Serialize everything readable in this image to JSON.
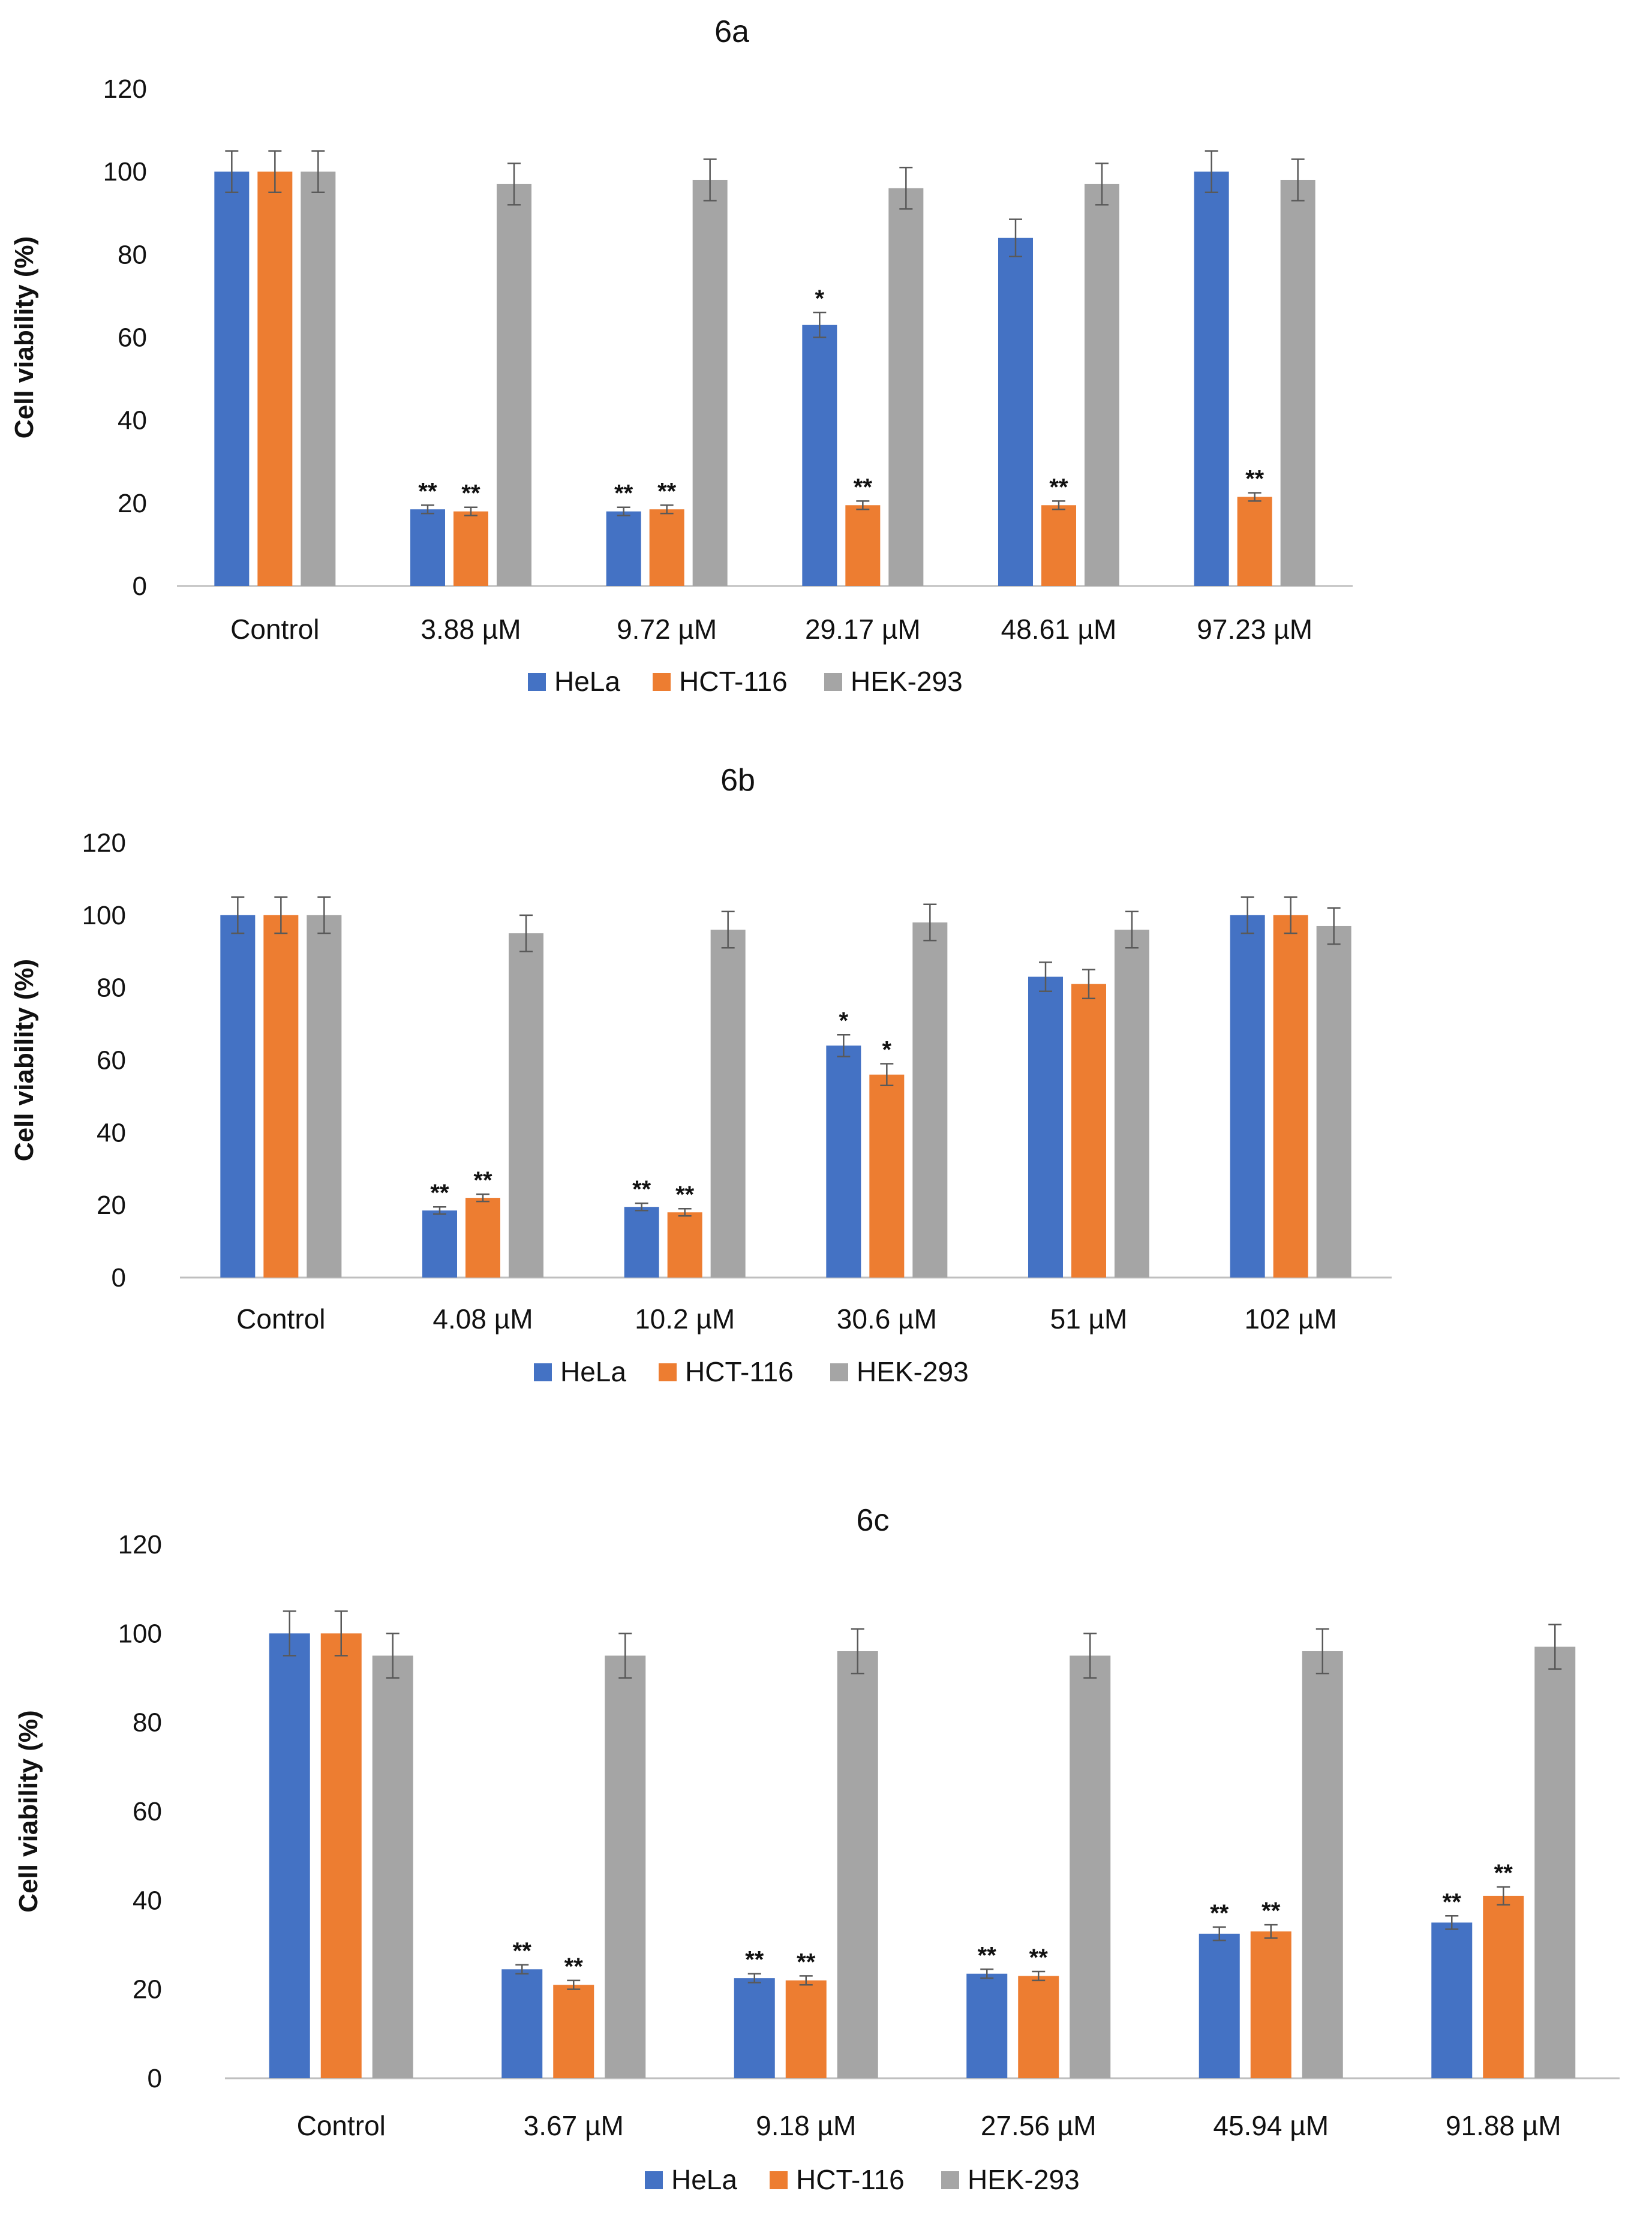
{
  "colors": {
    "HeLa": "#4472C4",
    "HCT-116": "#ED7D31",
    "HEK-293": "#A5A5A5",
    "axis": "#BFBFBF",
    "errbar": "#595959"
  },
  "chart_data": [
    {
      "type": "bar",
      "title": "6a",
      "ylabel": "Cell viability (%)",
      "xlabel": "",
      "ylim": [
        0,
        120
      ],
      "yticks": [
        0,
        20,
        40,
        60,
        80,
        100,
        120
      ],
      "categories": [
        "Control",
        "3.88 µM",
        "9.72 µM",
        "29.17 µM",
        "48.61 µM",
        "97.23 µM"
      ],
      "series": [
        {
          "name": "HeLa",
          "values": [
            100,
            18.5,
            18,
            63,
            84,
            100
          ],
          "errors": [
            5,
            1,
            1,
            3,
            4.5,
            5
          ],
          "significance": [
            "",
            "**",
            "**",
            "*",
            "",
            ""
          ]
        },
        {
          "name": "HCT-116",
          "values": [
            100,
            18,
            18.5,
            19.5,
            19.5,
            21.5
          ],
          "errors": [
            5,
            1,
            1,
            1,
            1,
            1
          ],
          "significance": [
            "",
            "**",
            "**",
            "**",
            "**",
            "**"
          ]
        },
        {
          "name": "HEK-293",
          "values": [
            100,
            97,
            98,
            96,
            97,
            98
          ],
          "errors": [
            5,
            5,
            5,
            5,
            5,
            5
          ],
          "significance": [
            "",
            "",
            "",
            "",
            "",
            ""
          ]
        }
      ],
      "legend": [
        "HeLa",
        "HCT-116",
        "HEK-293"
      ],
      "legend_position": "bottom",
      "grid": false
    },
    {
      "type": "bar",
      "title": "6b",
      "ylabel": "Cell viability (%)",
      "xlabel": "",
      "ylim": [
        0,
        120
      ],
      "yticks": [
        0,
        20,
        40,
        60,
        80,
        100,
        120
      ],
      "categories": [
        "Control",
        "4.08 µM",
        "10.2 µM",
        "30.6 µM",
        "51 µM",
        "102 µM"
      ],
      "series": [
        {
          "name": "HeLa",
          "values": [
            100,
            18.5,
            19.5,
            64,
            83,
            100
          ],
          "errors": [
            5,
            1,
            1,
            3,
            4,
            5
          ],
          "significance": [
            "",
            "**",
            "**",
            "*",
            "",
            ""
          ]
        },
        {
          "name": "HCT-116",
          "values": [
            100,
            22,
            18,
            56,
            81,
            100
          ],
          "errors": [
            5,
            1,
            1,
            3,
            4,
            5
          ],
          "significance": [
            "",
            "**",
            "**",
            "*",
            "",
            ""
          ]
        },
        {
          "name": "HEK-293",
          "values": [
            100,
            95,
            96,
            98,
            96,
            97
          ],
          "errors": [
            5,
            5,
            5,
            5,
            5,
            5
          ],
          "significance": [
            "",
            "",
            "",
            "",
            "",
            ""
          ]
        }
      ],
      "legend": [
        "HeLa",
        "HCT-116",
        "HEK-293"
      ],
      "legend_position": "bottom",
      "grid": false
    },
    {
      "type": "bar",
      "title": "6c",
      "ylabel": "Cell viability  (%)",
      "xlabel": "",
      "ylim": [
        0,
        120
      ],
      "yticks": [
        0,
        20,
        40,
        60,
        80,
        100,
        120
      ],
      "categories": [
        "Control",
        "3.67 µM",
        "9.18 µM",
        "27.56 µM",
        "45.94 µM",
        "91.88 µM"
      ],
      "series": [
        {
          "name": "HeLa",
          "values": [
            100,
            24.5,
            22.5,
            23.5,
            32.5,
            35
          ],
          "errors": [
            5,
            1,
            1,
            1,
            1.5,
            1.5
          ],
          "significance": [
            "",
            "**",
            "**",
            "**",
            "**",
            "**"
          ]
        },
        {
          "name": "HCT-116",
          "values": [
            100,
            21,
            22,
            23,
            33,
            41
          ],
          "errors": [
            5,
            1,
            1,
            1,
            1.5,
            2
          ],
          "significance": [
            "",
            "**",
            "**",
            "**",
            "**",
            "**"
          ]
        },
        {
          "name": "HEK-293",
          "values": [
            95,
            95,
            96,
            95,
            96,
            97
          ],
          "errors": [
            5,
            5,
            5,
            5,
            5,
            5
          ],
          "significance": [
            "",
            "",
            "",
            "",
            "",
            ""
          ]
        }
      ],
      "legend": [
        "HeLa",
        "HCT-116",
        "HEK-293"
      ],
      "legend_position": "bottom",
      "grid": false
    }
  ]
}
